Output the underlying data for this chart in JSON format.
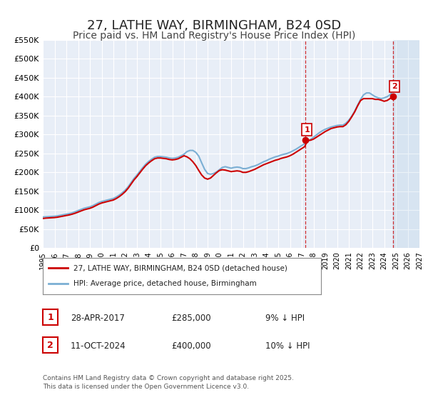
{
  "title": "27, LATHE WAY, BIRMINGHAM, B24 0SD",
  "subtitle": "Price paid vs. HM Land Registry's House Price Index (HPI)",
  "title_fontsize": 13,
  "subtitle_fontsize": 10,
  "background_color": "#ffffff",
  "plot_bg_color": "#e8eef7",
  "grid_color": "#ffffff",
  "ylabel_color": "#333333",
  "xmin": 1995.0,
  "xmax": 2027.0,
  "ymin": 0,
  "ymax": 550000,
  "yticks": [
    0,
    50000,
    100000,
    150000,
    200000,
    250000,
    300000,
    350000,
    400000,
    450000,
    500000,
    550000
  ],
  "ytick_labels": [
    "£0",
    "£50K",
    "£100K",
    "£150K",
    "£200K",
    "£250K",
    "£300K",
    "£350K",
    "£400K",
    "£450K",
    "£500K",
    "£550K"
  ],
  "xticks": [
    1995,
    1996,
    1997,
    1998,
    1999,
    2000,
    2001,
    2002,
    2003,
    2004,
    2005,
    2006,
    2007,
    2008,
    2009,
    2010,
    2011,
    2012,
    2013,
    2014,
    2015,
    2016,
    2017,
    2018,
    2019,
    2020,
    2021,
    2022,
    2023,
    2024,
    2025,
    2026,
    2027
  ],
  "transaction_color": "#cc0000",
  "hpi_color": "#7bafd4",
  "marker1_x": 2017.33,
  "marker1_y": 285000,
  "marker1_label": "1",
  "marker1_date": "28-APR-2017",
  "marker1_price": "£285,000",
  "marker1_hpi": "9% ↓ HPI",
  "marker2_x": 2024.78,
  "marker2_y": 400000,
  "marker2_label": "2",
  "marker2_date": "11-OCT-2024",
  "marker2_price": "£400,000",
  "marker2_hpi": "10% ↓ HPI",
  "legend_label1": "27, LATHE WAY, BIRMINGHAM, B24 0SD (detached house)",
  "legend_label2": "HPI: Average price, detached house, Birmingham",
  "footer_text": "Contains HM Land Registry data © Crown copyright and database right 2025.\nThis data is licensed under the Open Government Licence v3.0.",
  "hpi_data_x": [
    1995.0,
    1995.25,
    1995.5,
    1995.75,
    1996.0,
    1996.25,
    1996.5,
    1996.75,
    1997.0,
    1997.25,
    1997.5,
    1997.75,
    1998.0,
    1998.25,
    1998.5,
    1998.75,
    1999.0,
    1999.25,
    1999.5,
    1999.75,
    2000.0,
    2000.25,
    2000.5,
    2000.75,
    2001.0,
    2001.25,
    2001.5,
    2001.75,
    2002.0,
    2002.25,
    2002.5,
    2002.75,
    2003.0,
    2003.25,
    2003.5,
    2003.75,
    2004.0,
    2004.25,
    2004.5,
    2004.75,
    2005.0,
    2005.25,
    2005.5,
    2005.75,
    2006.0,
    2006.25,
    2006.5,
    2006.75,
    2007.0,
    2007.25,
    2007.5,
    2007.75,
    2008.0,
    2008.25,
    2008.5,
    2008.75,
    2009.0,
    2009.25,
    2009.5,
    2009.75,
    2010.0,
    2010.25,
    2010.5,
    2010.75,
    2011.0,
    2011.25,
    2011.5,
    2011.75,
    2012.0,
    2012.25,
    2012.5,
    2012.75,
    2013.0,
    2013.25,
    2013.5,
    2013.75,
    2014.0,
    2014.25,
    2014.5,
    2014.75,
    2015.0,
    2015.25,
    2015.5,
    2015.75,
    2016.0,
    2016.25,
    2016.5,
    2016.75,
    2017.0,
    2017.25,
    2017.5,
    2017.75,
    2018.0,
    2018.25,
    2018.5,
    2018.75,
    2019.0,
    2019.25,
    2019.5,
    2019.75,
    2020.0,
    2020.25,
    2020.5,
    2020.75,
    2021.0,
    2021.25,
    2021.5,
    2021.75,
    2022.0,
    2022.25,
    2022.5,
    2022.75,
    2023.0,
    2023.25,
    2023.5,
    2023.75,
    2024.0,
    2024.25,
    2024.5,
    2024.75,
    2025.0
  ],
  "hpi_data_y": [
    82000,
    82500,
    83000,
    83500,
    84000,
    85000,
    86500,
    88000,
    89500,
    91000,
    93000,
    96000,
    99000,
    102000,
    105000,
    107000,
    109000,
    112000,
    116000,
    120000,
    123000,
    125000,
    127000,
    129000,
    131000,
    135000,
    140000,
    146000,
    153000,
    162000,
    173000,
    184000,
    193000,
    203000,
    213000,
    222000,
    229000,
    235000,
    240000,
    242000,
    242000,
    241000,
    240000,
    238000,
    237000,
    238000,
    240000,
    244000,
    248000,
    255000,
    258000,
    258000,
    253000,
    243000,
    225000,
    208000,
    197000,
    195000,
    197000,
    201000,
    207000,
    213000,
    215000,
    213000,
    211000,
    213000,
    214000,
    213000,
    210000,
    210000,
    212000,
    215000,
    217000,
    220000,
    224000,
    228000,
    231000,
    235000,
    238000,
    241000,
    243000,
    246000,
    248000,
    250000,
    253000,
    257000,
    261000,
    266000,
    271000,
    276000,
    281000,
    287000,
    293000,
    299000,
    305000,
    310000,
    314000,
    317000,
    320000,
    322000,
    324000,
    325000,
    325000,
    330000,
    338000,
    349000,
    362000,
    378000,
    393000,
    405000,
    410000,
    410000,
    405000,
    400000,
    397000,
    395000,
    397000,
    400000,
    405000,
    415000,
    425000
  ],
  "transaction_data_x": [
    1995.0,
    1995.25,
    1995.5,
    1995.75,
    1996.0,
    1996.25,
    1996.5,
    1996.75,
    1997.0,
    1997.25,
    1997.5,
    1997.75,
    1998.0,
    1998.25,
    1998.5,
    1998.75,
    1999.0,
    1999.25,
    1999.5,
    1999.75,
    2000.0,
    2000.25,
    2000.5,
    2000.75,
    2001.0,
    2001.25,
    2001.5,
    2001.75,
    2002.0,
    2002.25,
    2002.5,
    2002.75,
    2003.0,
    2003.25,
    2003.5,
    2003.75,
    2004.0,
    2004.25,
    2004.5,
    2004.75,
    2005.0,
    2005.25,
    2005.5,
    2005.75,
    2006.0,
    2006.25,
    2006.5,
    2006.75,
    2007.0,
    2007.25,
    2007.5,
    2007.75,
    2008.0,
    2008.25,
    2008.5,
    2008.75,
    2009.0,
    2009.25,
    2009.5,
    2009.75,
    2010.0,
    2010.25,
    2010.5,
    2010.75,
    2011.0,
    2011.25,
    2011.5,
    2011.75,
    2012.0,
    2012.25,
    2012.5,
    2012.75,
    2013.0,
    2013.25,
    2013.5,
    2013.75,
    2014.0,
    2014.25,
    2014.5,
    2014.75,
    2015.0,
    2015.25,
    2015.5,
    2015.75,
    2016.0,
    2016.25,
    2016.5,
    2016.75,
    2017.0,
    2017.25,
    2017.5,
    2017.75,
    2018.0,
    2018.25,
    2018.5,
    2018.75,
    2019.0,
    2019.25,
    2019.5,
    2019.75,
    2020.0,
    2020.25,
    2020.5,
    2020.75,
    2021.0,
    2021.25,
    2021.5,
    2021.75,
    2022.0,
    2022.25,
    2022.5,
    2022.75,
    2023.0,
    2023.25,
    2023.5,
    2023.75,
    2024.0,
    2024.25,
    2024.5,
    2024.75
  ],
  "transaction_data_y": [
    78000,
    79000,
    79500,
    80000,
    80500,
    81500,
    83000,
    84500,
    86000,
    87500,
    89500,
    92000,
    95000,
    98000,
    101000,
    103000,
    105000,
    108000,
    112000,
    116000,
    119000,
    121000,
    123000,
    125000,
    127000,
    131000,
    136000,
    142000,
    149000,
    158000,
    169000,
    180000,
    189000,
    199000,
    209000,
    218000,
    225000,
    231000,
    236000,
    238000,
    238000,
    237000,
    236000,
    234000,
    233000,
    234000,
    236000,
    240000,
    244000,
    241000,
    236000,
    228000,
    218000,
    205000,
    193000,
    185000,
    182000,
    185000,
    192000,
    199000,
    205000,
    207000,
    206000,
    204000,
    202000,
    203000,
    204000,
    203000,
    200000,
    200000,
    202000,
    205000,
    208000,
    212000,
    216000,
    220000,
    223000,
    226000,
    229000,
    232000,
    234000,
    237000,
    239000,
    241000,
    244000,
    248000,
    253000,
    258000,
    263000,
    268000,
    285000,
    285000,
    288000,
    293000,
    298000,
    303000,
    308000,
    312000,
    316000,
    318000,
    320000,
    321000,
    321000,
    326000,
    335000,
    347000,
    360000,
    376000,
    390000,
    395000,
    395000,
    395000,
    395000,
    393000,
    393000,
    391000,
    388000,
    390000,
    395000,
    400000
  ]
}
